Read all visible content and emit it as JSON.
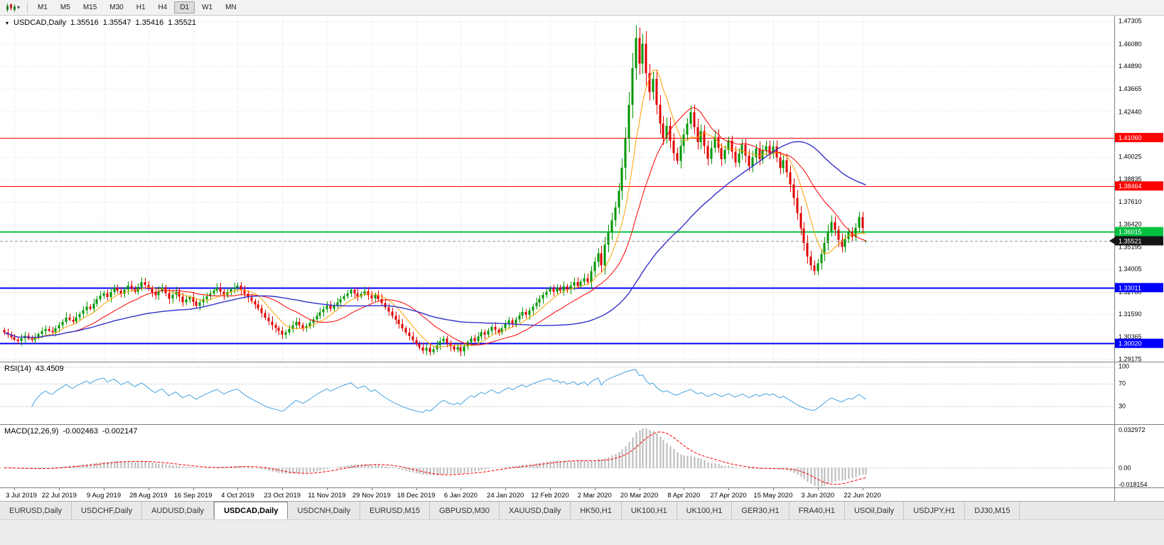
{
  "toolbar": {
    "timeframes": [
      "M1",
      "M5",
      "M15",
      "M30",
      "H1",
      "H4",
      "D1",
      "W1",
      "MN"
    ],
    "active_timeframe": "D1"
  },
  "icons": {
    "oct_arrow": "▾",
    "period_dropdown_arrow": "▾"
  },
  "main_panel": {
    "title": "USDCAD,Daily",
    "o": "1.35516",
    "h": "1.35547",
    "l": "1.35416",
    "c": "1.35521"
  },
  "rsi_panel": {
    "label": "RSI(14)",
    "value": "43.4509"
  },
  "macd_panel": {
    "label": "MACD(12,26,9)",
    "macd": "-0.002463",
    "signal": "-0.002147"
  },
  "tabs": {
    "items": [
      "EURUSD,Daily",
      "USDCHF,Daily",
      "AUDUSD,Daily",
      "USDCAD,Daily",
      "USDCNH,Daily",
      "EURUSD,M15",
      "GBPUSD,M30",
      "XAUUSD,Daily",
      "HK50,H1",
      "UK100,H1",
      "UK100,H1",
      "GER30,H1",
      "FRA40,H1",
      "USOil,Daily",
      "USDJPY,H1",
      "DJ30,M15"
    ],
    "active_index": 3
  },
  "chart_data": {
    "type": "candlestick",
    "symbol": "USDCAD",
    "period": "Daily",
    "x_labels": [
      "3 Jul 2019",
      "22 Jul 2019",
      "9 Aug 2019",
      "28 Aug 2019",
      "16 Sep 2019",
      "4 Oct 2019",
      "23 Oct 2019",
      "11 Nov 2019",
      "29 Nov 2019",
      "18 Dec 2019",
      "6 Jan 2020",
      "24 Jan 2020",
      "12 Feb 2020",
      "2 Mar 2020",
      "20 Mar 2020",
      "8 Apr 2020",
      "27 Apr 2020",
      "15 May 2020",
      "3 Jun 2020",
      "22 Jun 2020"
    ],
    "x_label_indices": [
      3,
      16,
      29,
      42,
      55,
      68,
      81,
      94,
      107,
      120,
      133,
      146,
      159,
      172,
      185,
      198,
      211,
      224,
      237,
      250
    ],
    "closes": [
      1.306,
      1.3048,
      1.3035,
      1.3022,
      1.3015,
      1.303,
      1.3042,
      1.3028,
      1.302,
      1.3038,
      1.3052,
      1.3068,
      1.308,
      1.307,
      1.3062,
      1.3082,
      1.31,
      1.3118,
      1.314,
      1.3128,
      1.312,
      1.3142,
      1.316,
      1.318,
      1.32,
      1.3188,
      1.3215,
      1.324,
      1.3258,
      1.3272,
      1.325,
      1.3278,
      1.33,
      1.3285,
      1.3268,
      1.329,
      1.3312,
      1.3295,
      1.328,
      1.3305,
      1.333,
      1.3315,
      1.3298,
      1.3275,
      1.326,
      1.3282,
      1.33,
      1.3272,
      1.3242,
      1.3262,
      1.328,
      1.3252,
      1.3222,
      1.3238,
      1.325,
      1.3225,
      1.3202,
      1.3222,
      1.324,
      1.3255,
      1.327,
      1.3285,
      1.33,
      1.328,
      1.3262,
      1.3278,
      1.3292,
      1.3302,
      1.3312,
      1.329,
      1.3268,
      1.3248,
      1.323,
      1.321,
      1.319,
      1.3165,
      1.314,
      1.312,
      1.31,
      1.3085,
      1.307,
      1.3048,
      1.306,
      1.308,
      1.3098,
      1.3118,
      1.31,
      1.3082,
      1.3095,
      1.3112,
      1.313,
      1.315,
      1.3168,
      1.3185,
      1.3205,
      1.3188,
      1.3205,
      1.3222,
      1.324,
      1.3255,
      1.327,
      1.3288,
      1.327,
      1.3252,
      1.3268,
      1.3282,
      1.326,
      1.3242,
      1.3262,
      1.324,
      1.3218,
      1.3195,
      1.3172,
      1.315,
      1.3128,
      1.3105,
      1.3082,
      1.306,
      1.304,
      1.302,
      1.3,
      1.298,
      1.2962,
      1.2978,
      1.2955,
      1.297,
      1.2992,
      1.3012,
      1.3028,
      1.3005,
      1.2985,
      1.2968,
      1.2982,
      1.296,
      1.2985,
      1.3008,
      1.303,
      1.3015,
      1.304,
      1.3062,
      1.3048,
      1.307,
      1.309,
      1.3075,
      1.306,
      1.3082,
      1.3105,
      1.3125,
      1.3108,
      1.313,
      1.3152,
      1.317,
      1.3155,
      1.3178,
      1.32,
      1.322,
      1.3242,
      1.3262,
      1.328,
      1.3298,
      1.328,
      1.3302,
      1.3285,
      1.3308,
      1.329,
      1.3312,
      1.333,
      1.331,
      1.3332,
      1.3352,
      1.333,
      1.339,
      1.344,
      1.3485,
      1.342,
      1.353,
      1.3598,
      1.3662,
      1.373,
      1.382,
      1.3945,
      1.41,
      1.4282,
      1.4478,
      1.464,
      1.4502,
      1.461,
      1.4452,
      1.435,
      1.442,
      1.4282,
      1.418,
      1.4102,
      1.417,
      1.409,
      1.4022,
      1.398,
      1.406,
      1.4122,
      1.418,
      1.4242,
      1.4162,
      1.4082,
      1.414,
      1.406,
      1.3992,
      1.405,
      1.411,
      1.405,
      1.399,
      1.404,
      1.409,
      1.403,
      1.3972,
      1.402,
      1.4068,
      1.401,
      1.3952,
      1.4,
      1.4048,
      1.399,
      1.4035,
      1.406,
      1.402,
      1.4058,
      1.4,
      1.3942,
      1.3985,
      1.392,
      1.3855,
      1.3782,
      1.37,
      1.3618,
      1.354,
      1.3468,
      1.342,
      1.339,
      1.3432,
      1.3482,
      1.354,
      1.36,
      1.3652,
      1.361,
      1.3558,
      1.352,
      1.3562,
      1.36,
      1.3572,
      1.3622,
      1.368,
      1.362,
      1.3552
    ],
    "last_candle": {
      "o": 1.35516,
      "h": 1.35547,
      "l": 1.35416,
      "c": 1.35521
    },
    "price_range": [
      1.29,
      1.476
    ],
    "axis_ticks": [
      "1.47305",
      "1.46080",
      "1.44890",
      "1.43665",
      "1.42440",
      "1.40025",
      "1.38835",
      "1.37610",
      "1.36420",
      "1.35195",
      "1.34005",
      "1.32780",
      "1.31590",
      "1.30365",
      "1.29175"
    ],
    "levels": [
      {
        "value": 1.4106,
        "label": "1.41060",
        "color": "#FF0000",
        "width": 1
      },
      {
        "value": 1.38464,
        "label": "1.38464",
        "color": "#FF0000",
        "width": 1
      },
      {
        "value": 1.36015,
        "label": "1.36015",
        "color": "#00C040",
        "width": 2
      },
      {
        "value": 1.33011,
        "label": "1.33011",
        "color": "#0000FF",
        "width": 2
      },
      {
        "value": 1.3002,
        "label": "1.30020",
        "color": "#0000FF",
        "width": 2
      }
    ],
    "current_price": {
      "value": 1.35521,
      "label": "1.35521",
      "box_color": "#151515"
    },
    "colors": {
      "bull": "#009600",
      "bear": "#E00000",
      "grid": "#DEDEDE"
    },
    "moving_averages": [
      {
        "period": 8,
        "color": "#FFA000",
        "width": 1
      },
      {
        "period": 20,
        "color": "#FF0000",
        "width": 1
      },
      {
        "period": 55,
        "color": "#3333CC",
        "width": 1.4
      }
    ],
    "rsi": {
      "period": 14,
      "color": "#46A3E0",
      "levels": [
        100,
        70,
        30
      ],
      "range": [
        -3,
        107
      ]
    },
    "macd": {
      "fast": 12,
      "slow": 26,
      "signal_period": 9,
      "histogram_color": "#B8B8B8",
      "signal_color": "#FF0000",
      "axis_labels": [
        "0.032972",
        "0.00",
        "-0.018154"
      ]
    }
  }
}
